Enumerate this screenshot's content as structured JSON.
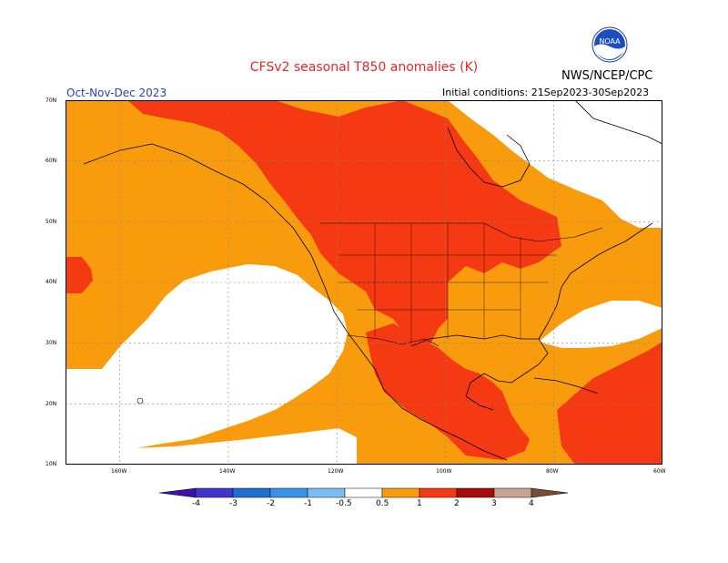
{
  "header": {
    "title": "CFSv2 seasonal T850 anomalies (K)",
    "season": "Oct-Nov-Dec 2023",
    "initial_conditions": "Initial conditions: 21Sep2023-30Sep2023",
    "agency": "NWS/NCEP/CPC",
    "logo_text": "NOAA"
  },
  "axes": {
    "lat_labels": [
      "70N",
      "60N",
      "50N",
      "40N",
      "30N",
      "20N",
      "10N"
    ],
    "lon_labels": [
      "160W",
      "140W",
      "120W",
      "100W",
      "80W",
      "60W"
    ]
  },
  "colorbar": {
    "labels": [
      "-4",
      "-3",
      "-2",
      "-1",
      "-0.5",
      "0.5",
      "1",
      "2",
      "3",
      "4"
    ],
    "colors": {
      "lt_-4": "#3d12a8",
      "-4_-3": "#4336cc",
      "-3_-2": "#1e6fd1",
      "-2_-1": "#3a93ea",
      "-1_-0.5": "#7cbcf5",
      "-0.5_0.5": "#ffffff",
      "0.5_1": "#f89c0e",
      "1_2": "#f53a13",
      "2_3": "#a50d0d",
      "3_4": "#c9a290",
      "gt_4": "#7a4a33"
    }
  },
  "map": {
    "colors": {
      "white": "#ffffff",
      "orange": "#f89c0e",
      "red": "#f53a13",
      "grid": "#888888"
    }
  }
}
